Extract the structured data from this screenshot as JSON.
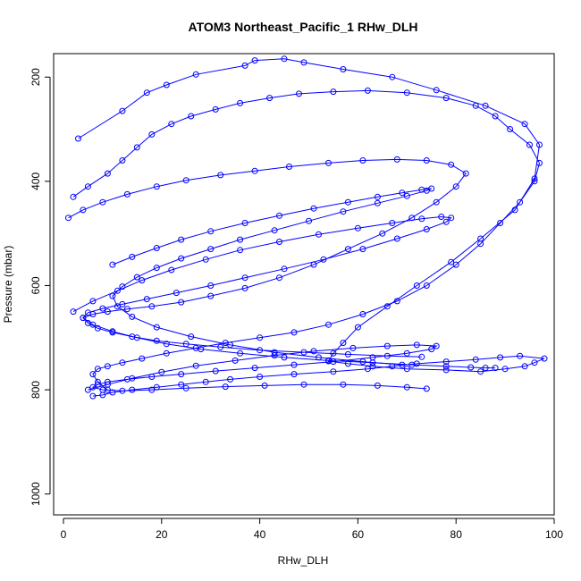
{
  "chart_data": {
    "type": "line",
    "title": "ATOM3 Northeast_Pacific_1 RHw_DLH",
    "xlabel": "RHw_DLH",
    "ylabel": "Pressure (mbar)",
    "xlim": [
      -2,
      100
    ],
    "ylim": [
      1040,
      155
    ],
    "y_reversed": true,
    "x_ticks": [
      0,
      20,
      40,
      60,
      80,
      100
    ],
    "y_ticks": [
      200,
      400,
      600,
      800,
      1000
    ],
    "marker": "open-circle",
    "grid": false,
    "legend": "none",
    "series_color": "#0000ff",
    "series": [
      {
        "x": [
          3,
          12,
          17,
          21,
          27,
          37,
          39,
          45,
          49,
          57,
          67,
          76,
          86,
          94,
          97,
          96,
          92,
          85,
          79,
          72,
          66,
          60,
          57,
          55,
          54,
          58,
          63,
          70,
          78,
          85,
          90,
          94,
          96,
          98,
          93,
          89,
          84,
          78,
          72,
          67,
          62,
          55,
          47,
          40,
          34,
          29,
          24,
          19,
          14,
          10,
          8,
          6
        ],
        "y": [
          318,
          265,
          230,
          215,
          195,
          178,
          168,
          165,
          172,
          185,
          200,
          225,
          255,
          290,
          330,
          395,
          455,
          510,
          555,
          600,
          640,
          680,
          710,
          730,
          745,
          750,
          755,
          760,
          762,
          765,
          760,
          755,
          748,
          740,
          735,
          738,
          742,
          746,
          750,
          755,
          760,
          765,
          770,
          775,
          780,
          785,
          790,
          795,
          800,
          805,
          810,
          812
        ]
      },
      {
        "x": [
          2,
          5,
          9,
          12,
          15,
          18,
          22,
          26,
          31,
          36,
          42,
          48,
          55,
          62,
          70,
          78,
          84,
          88,
          91,
          95,
          97,
          96,
          93,
          89,
          85,
          80,
          74,
          68,
          61,
          54,
          47,
          40,
          33,
          27,
          21,
          16,
          12,
          9,
          7,
          6,
          7,
          9
        ],
        "y": [
          430,
          410,
          385,
          360,
          335,
          310,
          290,
          275,
          262,
          250,
          240,
          232,
          228,
          226,
          230,
          240,
          255,
          275,
          300,
          330,
          365,
          400,
          440,
          480,
          520,
          560,
          600,
          630,
          655,
          675,
          690,
          700,
          710,
          720,
          730,
          740,
          748,
          755,
          760,
          770,
          785,
          800
        ]
      },
      {
        "x": [
          1,
          4,
          8,
          13,
          19,
          25,
          32,
          39,
          46,
          54,
          61,
          68,
          74,
          79,
          82,
          80,
          76,
          71,
          65,
          58,
          51,
          44,
          37,
          30,
          24,
          18,
          13,
          9,
          6,
          4,
          5,
          7,
          10,
          14,
          19,
          25,
          32,
          40,
          49,
          58,
          66,
          73
        ],
        "y": [
          470,
          455,
          440,
          425,
          410,
          398,
          388,
          380,
          372,
          365,
          360,
          358,
          360,
          368,
          385,
          410,
          440,
          470,
          500,
          530,
          560,
          585,
          605,
          620,
          632,
          640,
          645,
          650,
          655,
          662,
          672,
          682,
          690,
          698,
          706,
          712,
          718,
          724,
          728,
          732,
          735,
          737
        ]
      },
      {
        "x": [
          2,
          6,
          11,
          16,
          22,
          29,
          36,
          44,
          52,
          60,
          67,
          73,
          77,
          79,
          78,
          74,
          68,
          61,
          53,
          45,
          37,
          30,
          23,
          17,
          12,
          8,
          5,
          4,
          6,
          10,
          15,
          21,
          28,
          36,
          45,
          54,
          63,
          71,
          78,
          83,
          86,
          88
        ],
        "y": [
          650,
          630,
          610,
          590,
          570,
          550,
          532,
          516,
          502,
          490,
          480,
          472,
          468,
          470,
          478,
          492,
          510,
          530,
          550,
          568,
          585,
          600,
          614,
          626,
          636,
          644,
          652,
          662,
          675,
          688,
          700,
          712,
          722,
          730,
          738,
          744,
          748,
          752,
          755,
          757,
          758,
          758
        ]
      },
      {
        "x": [
          5,
          9,
          14,
          20,
          27,
          35,
          43,
          51,
          59,
          66,
          72,
          76,
          75,
          70,
          63,
          55,
          47,
          39,
          31,
          24,
          18,
          13,
          9,
          7,
          6,
          8,
          12,
          18,
          25,
          33,
          41,
          49,
          57,
          64,
          70,
          74
        ],
        "y": [
          800,
          790,
          778,
          766,
          754,
          744,
          734,
          726,
          720,
          716,
          714,
          716,
          722,
          730,
          738,
          746,
          752,
          758,
          764,
          770,
          775,
          780,
          785,
          790,
          795,
          800,
          802,
          800,
          797,
          794,
          792,
          790,
          790,
          792,
          795,
          798
        ]
      },
      {
        "x": [
          10,
          14,
          19,
          24,
          30,
          37,
          44,
          51,
          58,
          64,
          69,
          73,
          75,
          74,
          70,
          64,
          57,
          50,
          43,
          36,
          30,
          24,
          19,
          15,
          12,
          10,
          11,
          14,
          19,
          26,
          34,
          43,
          52,
          61,
          69
        ],
        "y": [
          560,
          545,
          528,
          512,
          496,
          480,
          466,
          452,
          440,
          430,
          422,
          416,
          414,
          418,
          428,
          442,
          458,
          476,
          494,
          512,
          530,
          548,
          566,
          584,
          602,
          620,
          640,
          660,
          680,
          698,
          714,
          728,
          738,
          746,
          752
        ]
      }
    ]
  }
}
